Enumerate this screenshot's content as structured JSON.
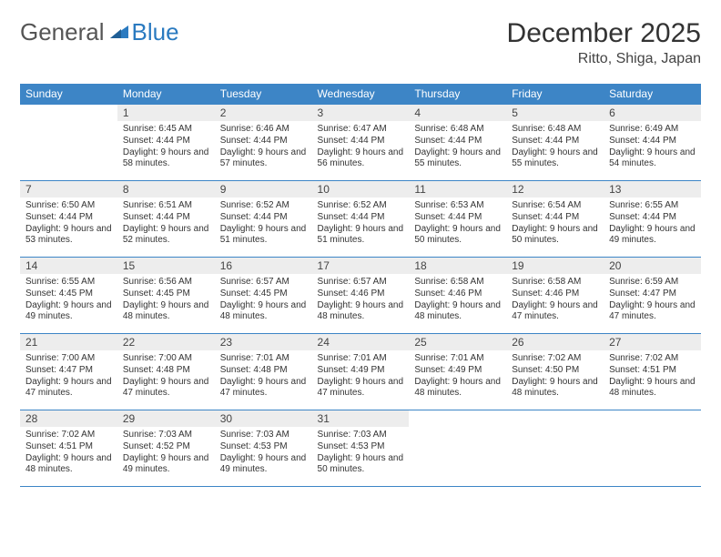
{
  "logo": {
    "text1": "General",
    "text2": "Blue"
  },
  "title": "December 2025",
  "location": "Ritto, Shiga, Japan",
  "colors": {
    "header_bg": "#3d85c6",
    "header_text": "#ffffff",
    "daynum_bg": "#ededed",
    "grid_border": "#3d85c6",
    "logo_blue": "#2a7ac0"
  },
  "weekdays": [
    "Sunday",
    "Monday",
    "Tuesday",
    "Wednesday",
    "Thursday",
    "Friday",
    "Saturday"
  ],
  "weeks": [
    [
      {
        "n": "",
        "sr": "",
        "ss": "",
        "dl": ""
      },
      {
        "n": "1",
        "sr": "6:45 AM",
        "ss": "4:44 PM",
        "dl": "9 hours and 58 minutes."
      },
      {
        "n": "2",
        "sr": "6:46 AM",
        "ss": "4:44 PM",
        "dl": "9 hours and 57 minutes."
      },
      {
        "n": "3",
        "sr": "6:47 AM",
        "ss": "4:44 PM",
        "dl": "9 hours and 56 minutes."
      },
      {
        "n": "4",
        "sr": "6:48 AM",
        "ss": "4:44 PM",
        "dl": "9 hours and 55 minutes."
      },
      {
        "n": "5",
        "sr": "6:48 AM",
        "ss": "4:44 PM",
        "dl": "9 hours and 55 minutes."
      },
      {
        "n": "6",
        "sr": "6:49 AM",
        "ss": "4:44 PM",
        "dl": "9 hours and 54 minutes."
      }
    ],
    [
      {
        "n": "7",
        "sr": "6:50 AM",
        "ss": "4:44 PM",
        "dl": "9 hours and 53 minutes."
      },
      {
        "n": "8",
        "sr": "6:51 AM",
        "ss": "4:44 PM",
        "dl": "9 hours and 52 minutes."
      },
      {
        "n": "9",
        "sr": "6:52 AM",
        "ss": "4:44 PM",
        "dl": "9 hours and 51 minutes."
      },
      {
        "n": "10",
        "sr": "6:52 AM",
        "ss": "4:44 PM",
        "dl": "9 hours and 51 minutes."
      },
      {
        "n": "11",
        "sr": "6:53 AM",
        "ss": "4:44 PM",
        "dl": "9 hours and 50 minutes."
      },
      {
        "n": "12",
        "sr": "6:54 AM",
        "ss": "4:44 PM",
        "dl": "9 hours and 50 minutes."
      },
      {
        "n": "13",
        "sr": "6:55 AM",
        "ss": "4:44 PM",
        "dl": "9 hours and 49 minutes."
      }
    ],
    [
      {
        "n": "14",
        "sr": "6:55 AM",
        "ss": "4:45 PM",
        "dl": "9 hours and 49 minutes."
      },
      {
        "n": "15",
        "sr": "6:56 AM",
        "ss": "4:45 PM",
        "dl": "9 hours and 48 minutes."
      },
      {
        "n": "16",
        "sr": "6:57 AM",
        "ss": "4:45 PM",
        "dl": "9 hours and 48 minutes."
      },
      {
        "n": "17",
        "sr": "6:57 AM",
        "ss": "4:46 PM",
        "dl": "9 hours and 48 minutes."
      },
      {
        "n": "18",
        "sr": "6:58 AM",
        "ss": "4:46 PM",
        "dl": "9 hours and 48 minutes."
      },
      {
        "n": "19",
        "sr": "6:58 AM",
        "ss": "4:46 PM",
        "dl": "9 hours and 47 minutes."
      },
      {
        "n": "20",
        "sr": "6:59 AM",
        "ss": "4:47 PM",
        "dl": "9 hours and 47 minutes."
      }
    ],
    [
      {
        "n": "21",
        "sr": "7:00 AM",
        "ss": "4:47 PM",
        "dl": "9 hours and 47 minutes."
      },
      {
        "n": "22",
        "sr": "7:00 AM",
        "ss": "4:48 PM",
        "dl": "9 hours and 47 minutes."
      },
      {
        "n": "23",
        "sr": "7:01 AM",
        "ss": "4:48 PM",
        "dl": "9 hours and 47 minutes."
      },
      {
        "n": "24",
        "sr": "7:01 AM",
        "ss": "4:49 PM",
        "dl": "9 hours and 47 minutes."
      },
      {
        "n": "25",
        "sr": "7:01 AM",
        "ss": "4:49 PM",
        "dl": "9 hours and 48 minutes."
      },
      {
        "n": "26",
        "sr": "7:02 AM",
        "ss": "4:50 PM",
        "dl": "9 hours and 48 minutes."
      },
      {
        "n": "27",
        "sr": "7:02 AM",
        "ss": "4:51 PM",
        "dl": "9 hours and 48 minutes."
      }
    ],
    [
      {
        "n": "28",
        "sr": "7:02 AM",
        "ss": "4:51 PM",
        "dl": "9 hours and 48 minutes."
      },
      {
        "n": "29",
        "sr": "7:03 AM",
        "ss": "4:52 PM",
        "dl": "9 hours and 49 minutes."
      },
      {
        "n": "30",
        "sr": "7:03 AM",
        "ss": "4:53 PM",
        "dl": "9 hours and 49 minutes."
      },
      {
        "n": "31",
        "sr": "7:03 AM",
        "ss": "4:53 PM",
        "dl": "9 hours and 50 minutes."
      },
      {
        "n": "",
        "sr": "",
        "ss": "",
        "dl": ""
      },
      {
        "n": "",
        "sr": "",
        "ss": "",
        "dl": ""
      },
      {
        "n": "",
        "sr": "",
        "ss": "",
        "dl": ""
      }
    ]
  ],
  "labels": {
    "sunrise": "Sunrise: ",
    "sunset": "Sunset: ",
    "daylight": "Daylight: "
  }
}
